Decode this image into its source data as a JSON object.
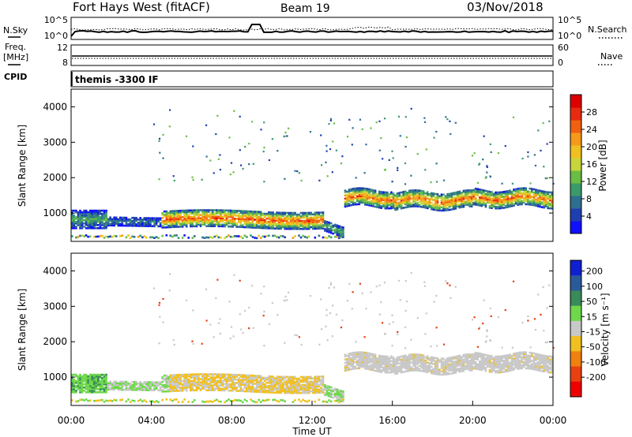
{
  "header": {
    "station": "Fort Hays West (fitACF)",
    "beam": "Beam 19",
    "date": "03/Nov/2018"
  },
  "side_labels": {
    "nsky": "N.Sky",
    "freq_line1": "Freq.",
    "freq_line2": "[MHz]",
    "cpid": "CPID",
    "nsearch": "N.Search",
    "nave": "Nave"
  },
  "cpid_text": "themis -3300 IF",
  "colors": {
    "black": "#000000",
    "dark_blue": "#1f2fa0",
    "green_dark": "#2e8b57",
    "green_light": "#6fd34a",
    "gray_scatter": "#c8c8c8"
  },
  "chart_data": [
    {
      "type": "line",
      "name": "noise-panel",
      "yticks_left": [
        "10^5",
        "10^0"
      ],
      "yticks_right": [
        "10^5",
        "10^0"
      ],
      "xlim": [
        0,
        24
      ]
    },
    {
      "type": "line",
      "name": "frequency-panel",
      "yticks_left": [
        "12",
        "8"
      ],
      "yticks_right": [
        "60",
        "0"
      ],
      "xlim": [
        0,
        24
      ]
    },
    {
      "type": "heatmap",
      "name": "power-panel",
      "ylabel": "Slant Range [km]",
      "ylim": [
        200,
        4500
      ],
      "yticks": [
        1000,
        2000,
        3000,
        4000
      ],
      "xlim": [
        0,
        24
      ],
      "colorbar": {
        "label": "Power [dB]",
        "ticks": [
          4,
          8,
          12,
          16,
          20,
          24,
          28
        ],
        "colors": [
          "#1010ff",
          "#1f3fb0",
          "#2e6f8f",
          "#3a9a6a",
          "#6abd45",
          "#c7d63a",
          "#f0c020",
          "#f49a18",
          "#f06010",
          "#e82a10",
          "#dd0000"
        ]
      }
    },
    {
      "type": "heatmap",
      "name": "velocity-panel",
      "ylabel": "Slant Range [km]",
      "ylim": [
        200,
        4500
      ],
      "yticks": [
        1000,
        2000,
        3000,
        4000
      ],
      "xlim": [
        0,
        24
      ],
      "xlabel": "Time UT",
      "xticks": [
        "00:00",
        "04:00",
        "08:00",
        "12:00",
        "16:00",
        "20:00",
        "00:00"
      ],
      "colorbar": {
        "label": "Velocity [m s⁻¹]",
        "ticks": [
          "200",
          "100",
          "50",
          "15",
          "-15",
          "-50",
          "-100",
          "-200"
        ],
        "colors": [
          "#1020d0",
          "#2a5a9a",
          "#3a8a5a",
          "#6ed84a",
          "#c8c8c8",
          "#f0c020",
          "#f08010",
          "#e84010",
          "#ee0000"
        ]
      }
    }
  ]
}
